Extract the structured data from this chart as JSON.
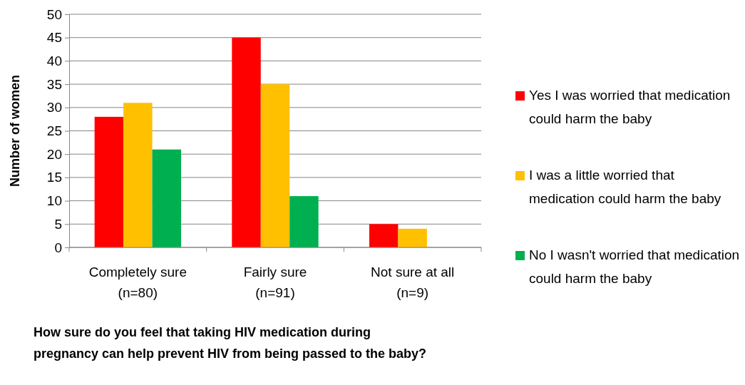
{
  "chart_data": {
    "type": "bar",
    "xlabel": "How sure do you feel that taking HIV medication during pregnancy can help prevent HIV from being passed to the baby?",
    "ylabel": "Number of women",
    "categories": [
      "Completely sure\n(n=80)",
      "Fairly sure\n(n=91)",
      "Not sure at all\n(n=9)"
    ],
    "series": [
      {
        "name": "Yes I was worried that medication could harm the baby",
        "color": "#ff0000",
        "values": [
          28,
          45,
          5
        ]
      },
      {
        "name": "I was a little worried that medication could harm the baby",
        "color": "#ffc000",
        "values": [
          31,
          35,
          4
        ]
      },
      {
        "name": "No I wasn't worried that medication could harm the baby",
        "color": "#00b050",
        "values": [
          21,
          11,
          0
        ]
      }
    ],
    "ylim": [
      0,
      50
    ],
    "yticks": [
      0,
      5,
      10,
      15,
      20,
      25,
      30,
      35,
      40,
      45,
      50
    ],
    "grid": "y",
    "legend": "right"
  }
}
